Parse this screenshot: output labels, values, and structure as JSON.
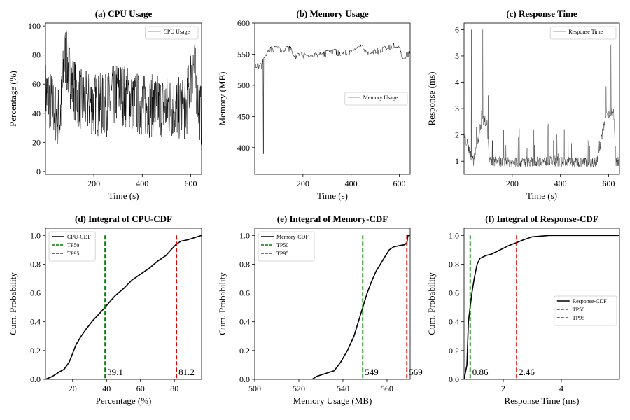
{
  "chart_data": [
    {
      "id": "a",
      "type": "line",
      "title": "(a) CPU Usage",
      "xlabel": "Time (s)",
      "ylabel": "Percentage (%)",
      "xlim": [
        0,
        645
      ],
      "ylim": [
        -2,
        102
      ],
      "xticks": [
        200,
        400,
        600
      ],
      "yticks": [
        0,
        20,
        40,
        60,
        80,
        100
      ],
      "legend": {
        "entries": [
          "CPU Usage"
        ],
        "position": "top-right"
      },
      "series": [
        {
          "name": "CPU Usage",
          "color": "#000000",
          "style": "noisy",
          "profile": [
            [
              0,
              55
            ],
            [
              30,
              45
            ],
            [
              60,
              35
            ],
            [
              80,
              80
            ],
            [
              110,
              60
            ],
            [
              150,
              48
            ],
            [
              250,
              45
            ],
            [
              300,
              55
            ],
            [
              400,
              45
            ],
            [
              500,
              45
            ],
            [
              580,
              42
            ],
            [
              610,
              75
            ],
            [
              645,
              35
            ]
          ],
          "spread": 22,
          "points": 640
        }
      ]
    },
    {
      "id": "b",
      "type": "line",
      "title": "(b) Memory Usage",
      "xlabel": "Time (s)",
      "ylabel": "Memory (MB)",
      "xlim": [
        0,
        645
      ],
      "ylim": [
        357,
        600
      ],
      "xticks": [
        200,
        400,
        600
      ],
      "yticks": [
        400,
        450,
        500,
        550,
        600
      ],
      "legend": {
        "entries": [
          "Memory Usage"
        ],
        "position": "center-right"
      },
      "series": [
        {
          "name": "Memory Usage",
          "color": "#000000",
          "style": "steps",
          "profile": [
            [
              0,
              530
            ],
            [
              30,
              532
            ],
            [
              34,
              545
            ],
            [
              70,
              558
            ],
            [
              150,
              558
            ],
            [
              160,
              548
            ],
            [
              250,
              548
            ],
            [
              330,
              553
            ],
            [
              400,
              552
            ],
            [
              430,
              565
            ],
            [
              480,
              550
            ],
            [
              560,
              562
            ],
            [
              600,
              565
            ],
            [
              612,
              545
            ],
            [
              645,
              552
            ]
          ],
          "spread": 5,
          "points": 640,
          "dip": {
            "x": 36,
            "y": 390
          }
        }
      ]
    },
    {
      "id": "c",
      "type": "line",
      "title": "(c) Response Time",
      "xlabel": "Time (s)",
      "ylabel": "Response (ms)",
      "xlim": [
        0,
        645
      ],
      "ylim": [
        0.5,
        6.25
      ],
      "xticks": [
        200,
        400,
        600
      ],
      "yticks": [
        1,
        2,
        3,
        4,
        5,
        6
      ],
      "legend": {
        "entries": [
          "Response Time"
        ],
        "position": "top-right"
      },
      "series": [
        {
          "name": "Response Time",
          "color": "#000000",
          "style": "spiky",
          "profile": [
            [
              0,
              2.0
            ],
            [
              30,
              1.2
            ],
            [
              40,
              1.0
            ],
            [
              75,
              2.6
            ],
            [
              95,
              2.5
            ],
            [
              105,
              1.0
            ],
            [
              200,
              0.95
            ],
            [
              350,
              1.0
            ],
            [
              550,
              0.95
            ],
            [
              590,
              2.8
            ],
            [
              620,
              2.9
            ],
            [
              630,
              1.0
            ],
            [
              645,
              1.0
            ]
          ],
          "spread": 0.4,
          "points": 640,
          "peaks": [
            {
              "x": 30,
              "y": 6.0
            },
            {
              "x": 78,
              "y": 6.0
            },
            {
              "x": 610,
              "y": 5.4
            },
            {
              "x": 100,
              "y": 3.5
            }
          ]
        }
      ]
    },
    {
      "id": "d",
      "type": "line",
      "title": "(d) Integral of CPU-CDF",
      "xlabel": "Percentage (%)",
      "ylabel": "Cum. Probability",
      "xlim": [
        4,
        96
      ],
      "ylim": [
        0,
        1.05
      ],
      "xticks": [
        20,
        40,
        60,
        80
      ],
      "yticks": [
        0.0,
        0.2,
        0.4,
        0.6,
        0.8,
        1.0
      ],
      "ytick_labels": [
        "0.0",
        "0.2",
        "0.4",
        "0.6",
        "0.8",
        "1.0"
      ],
      "legend": {
        "entries": [
          "CPU-CDF",
          "TP50",
          "TP95"
        ],
        "position": "top-left"
      },
      "series": [
        {
          "name": "CPU-CDF",
          "color": "#000000",
          "style": "cdf",
          "x": [
            4,
            8,
            12,
            15,
            18,
            20,
            22,
            25,
            28,
            32,
            36,
            39.1,
            42,
            45,
            50,
            55,
            60,
            65,
            70,
            75,
            78,
            81.2,
            84,
            88,
            92,
            96
          ],
          "y": [
            0,
            0.02,
            0.05,
            0.07,
            0.12,
            0.18,
            0.24,
            0.3,
            0.35,
            0.41,
            0.46,
            0.5,
            0.54,
            0.58,
            0.63,
            0.69,
            0.73,
            0.77,
            0.82,
            0.86,
            0.9,
            0.94,
            0.96,
            0.97,
            0.985,
            1.0
          ]
        }
      ],
      "vlines": [
        {
          "name": "TP50",
          "x": 39.1,
          "color": "#008000",
          "label": "39.1"
        },
        {
          "name": "TP95",
          "x": 81.2,
          "color": "#e00000",
          "label": "81.2"
        }
      ]
    },
    {
      "id": "e",
      "type": "line",
      "title": "(e) Integral of Memory-CDF",
      "xlabel": "Memory Usage (MB)",
      "ylabel": "Cum. Probability",
      "xlim": [
        500,
        570.5
      ],
      "ylim": [
        0,
        1.05
      ],
      "xticks": [
        500,
        520,
        540,
        560
      ],
      "yticks": [
        0.0,
        0.2,
        0.4,
        0.6,
        0.8,
        1.0
      ],
      "ytick_labels": [
        "0.0",
        "0.2",
        "0.4",
        "0.6",
        "0.8",
        "1.0"
      ],
      "legend": {
        "entries": [
          "Memory-CDF",
          "TP50",
          "TP95"
        ],
        "position": "top-left"
      },
      "series": [
        {
          "name": "Memory-CDF",
          "color": "#000000",
          "style": "cdf",
          "x": [
            500,
            526,
            528,
            532,
            536,
            539,
            542,
            545,
            547,
            549,
            551,
            553,
            555,
            557,
            559,
            561,
            563,
            566,
            568,
            569,
            569.5,
            570.5
          ],
          "y": [
            0,
            0,
            0.02,
            0.04,
            0.06,
            0.12,
            0.2,
            0.3,
            0.4,
            0.5,
            0.6,
            0.68,
            0.75,
            0.8,
            0.85,
            0.9,
            0.92,
            0.93,
            0.935,
            0.95,
            1.0,
            1.0
          ]
        }
      ],
      "vlines": [
        {
          "name": "TP50",
          "x": 549,
          "color": "#008000",
          "label": "549"
        },
        {
          "name": "TP95",
          "x": 569,
          "color": "#e00000",
          "label": "569"
        }
      ]
    },
    {
      "id": "f",
      "type": "line",
      "title": "(f) Integral of Response-CDF",
      "xlabel": "Response Time (ms)",
      "ylabel": "Cum. Probability",
      "xlim": [
        0.65,
        6.0
      ],
      "ylim": [
        0,
        1.05
      ],
      "xticks": [
        2,
        4
      ],
      "yticks": [
        0.0,
        0.2,
        0.4,
        0.6,
        0.8,
        1.0
      ],
      "ytick_labels": [
        "0.0",
        "0.2",
        "0.4",
        "0.6",
        "0.8",
        "1.0"
      ],
      "legend": {
        "entries": [
          "Response-CDF",
          "TP50",
          "TP95"
        ],
        "position": "center-right"
      },
      "series": [
        {
          "name": "Response-CDF",
          "color": "#000000",
          "style": "cdf",
          "x": [
            0.65,
            0.75,
            0.8,
            0.86,
            0.92,
            1.0,
            1.1,
            1.2,
            1.4,
            1.6,
            1.8,
            2.0,
            2.2,
            2.46,
            2.7,
            3.0,
            3.3,
            3.6,
            4.0,
            5.0,
            6.0
          ],
          "y": [
            0,
            0.1,
            0.4,
            0.5,
            0.6,
            0.7,
            0.8,
            0.84,
            0.86,
            0.87,
            0.89,
            0.91,
            0.93,
            0.95,
            0.97,
            0.99,
            0.995,
            1.0,
            1.0,
            1.0,
            1.0
          ]
        }
      ],
      "vlines": [
        {
          "name": "TP50",
          "x": 0.86,
          "color": "#008000",
          "label": "0.86"
        },
        {
          "name": "TP95",
          "x": 2.46,
          "color": "#e00000",
          "label": "2.46"
        }
      ]
    }
  ]
}
